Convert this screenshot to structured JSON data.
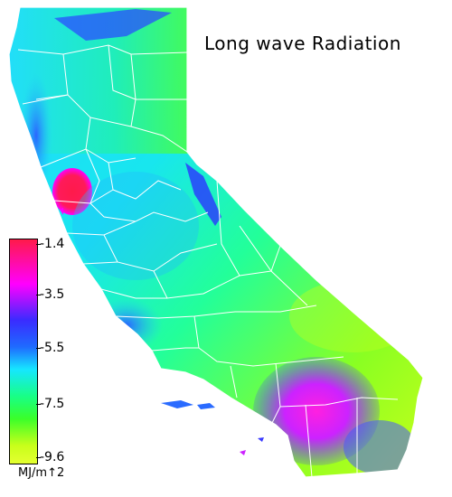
{
  "title": "Long wave Radiation",
  "legend": {
    "ticks": [
      "-1.4",
      "-3.5",
      "-5.5",
      "-7.5",
      "-9.6"
    ],
    "units": "MJ/m↑2",
    "colors": [
      "#ff1a4a",
      "#ff00ff",
      "#3a2bff",
      "#1f6bff",
      "#16e6ff",
      "#18ff86",
      "#3aff2a",
      "#c8ff1a",
      "#e4ff30"
    ]
  }
}
